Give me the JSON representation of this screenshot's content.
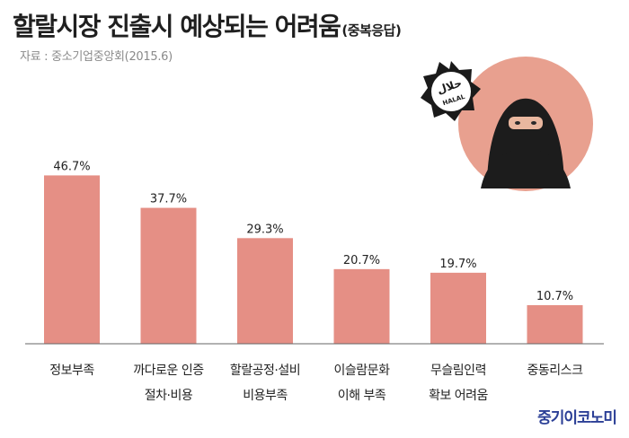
{
  "header": {
    "title": "할랄시장 진출시 예상되는 어려움",
    "subtitle": "(중복응답)",
    "source": "자료 : 중소기업중앙회(2015.6)"
  },
  "badge_text": {
    "top": "HALAL",
    "arabic": "حلال"
  },
  "logo": "중기이코노미",
  "colors": {
    "bar": "#e58f85",
    "circle": "#e8a08f",
    "badge": "#1a1a1a",
    "logo": "#2b3f96"
  },
  "chart_data": {
    "type": "bar",
    "categories": [
      [
        "정보부족"
      ],
      [
        "까다로운 인증",
        "절차·비용"
      ],
      [
        "할랄공정·설비",
        "비용부족"
      ],
      [
        "이슬람문화",
        "이해 부족"
      ],
      [
        "무슬림인력",
        "확보 어려움"
      ],
      [
        "중동리스크"
      ]
    ],
    "values": [
      46.7,
      37.7,
      29.3,
      20.7,
      19.7,
      10.7
    ],
    "value_labels": [
      "46.7%",
      "37.7%",
      "29.3%",
      "20.7%",
      "19.7%",
      "10.7%"
    ],
    "unit": "%",
    "ylim": [
      0,
      60
    ],
    "grid": false,
    "legend": "none"
  }
}
